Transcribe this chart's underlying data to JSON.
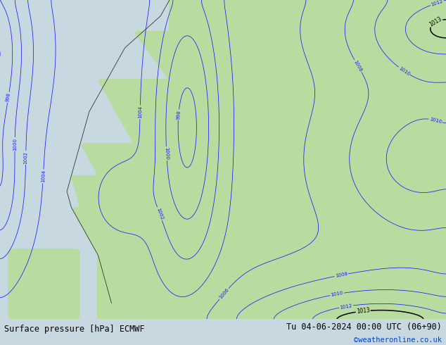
{
  "title_left": "Surface pressure [hPa] ECMWF",
  "title_right": "Tu 04-06-2024 00:00 UTC (06+90)",
  "copyright": "©weatheronline.co.uk",
  "bg_ocean_color": "#c8d8e0",
  "bg_land_color": "#b8dca0",
  "fig_width": 6.34,
  "fig_height": 4.9,
  "dpi": 100,
  "footer_bg": "#c8dca0",
  "footer_text_color": "black",
  "copyright_color": "#0044cc"
}
